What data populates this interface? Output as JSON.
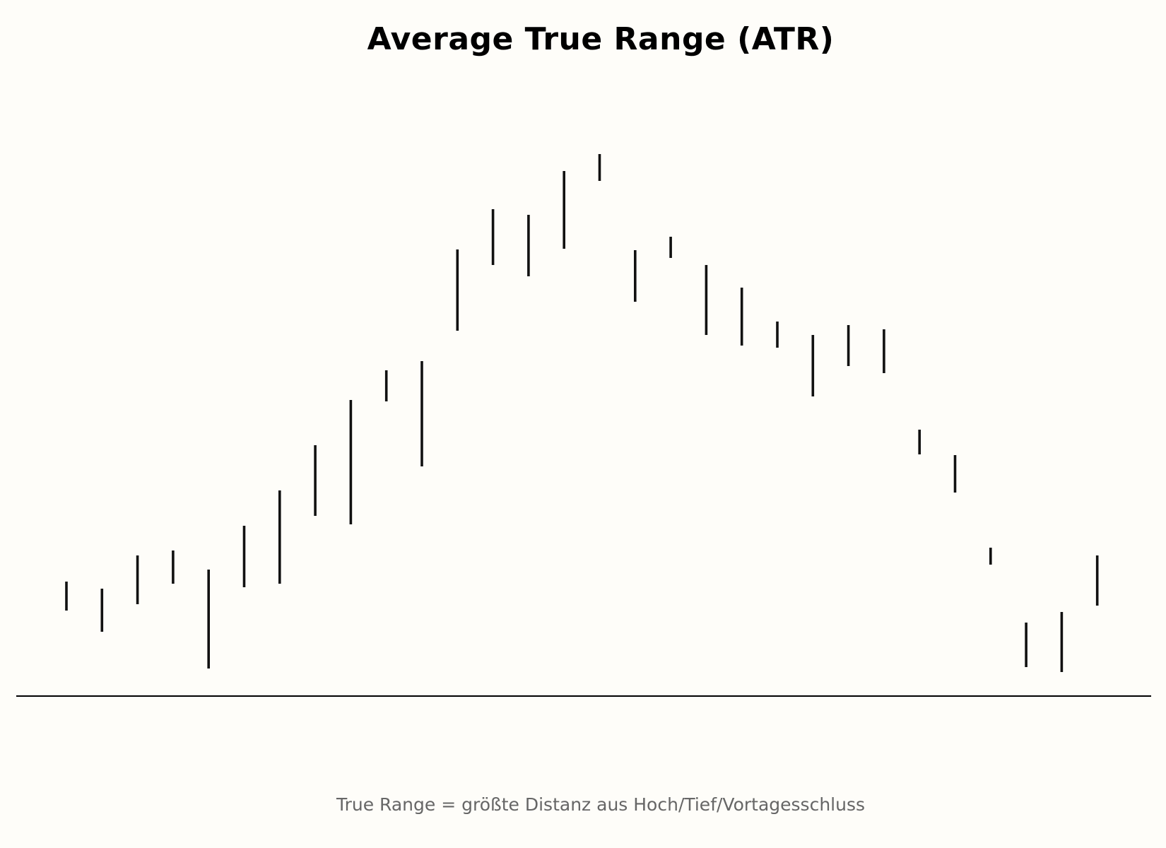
{
  "chart_data": {
    "type": "range-bar",
    "title": "Average True Range (ATR)",
    "footnote": "True Range = größte Distanz aus Hoch/Tief/Vortagesschluss",
    "grid": false,
    "axes_visible": false,
    "bar_color": "#111111",
    "baseline_color": "#000000",
    "background_color": "#fefdf9",
    "ylim": [
      0,
      885
    ],
    "baseline_value": 0,
    "bars": [
      {
        "high": 162,
        "low": 121
      },
      {
        "high": 152,
        "low": 91
      },
      {
        "high": 199,
        "low": 130
      },
      {
        "high": 206,
        "low": 159
      },
      {
        "high": 179,
        "low": 39
      },
      {
        "high": 241,
        "low": 154
      },
      {
        "high": 291,
        "low": 159
      },
      {
        "high": 355,
        "low": 255
      },
      {
        "high": 419,
        "low": 243
      },
      {
        "high": 461,
        "low": 417
      },
      {
        "high": 474,
        "low": 325
      },
      {
        "high": 632,
        "low": 517
      },
      {
        "high": 689,
        "low": 610
      },
      {
        "high": 681,
        "low": 594
      },
      {
        "high": 743,
        "low": 633
      },
      {
        "high": 767,
        "low": 729
      },
      {
        "high": 631,
        "low": 558
      },
      {
        "high": 650,
        "low": 620
      },
      {
        "high": 610,
        "low": 511
      },
      {
        "high": 578,
        "low": 496
      },
      {
        "high": 530,
        "low": 493
      },
      {
        "high": 511,
        "low": 424
      },
      {
        "high": 525,
        "low": 467
      },
      {
        "high": 519,
        "low": 457
      },
      {
        "high": 377,
        "low": 342
      },
      {
        "high": 341,
        "low": 288
      },
      {
        "high": 210,
        "low": 186
      },
      {
        "high": 104,
        "low": 41
      },
      {
        "high": 119,
        "low": 34
      },
      {
        "high": 199,
        "low": 128
      }
    ]
  }
}
